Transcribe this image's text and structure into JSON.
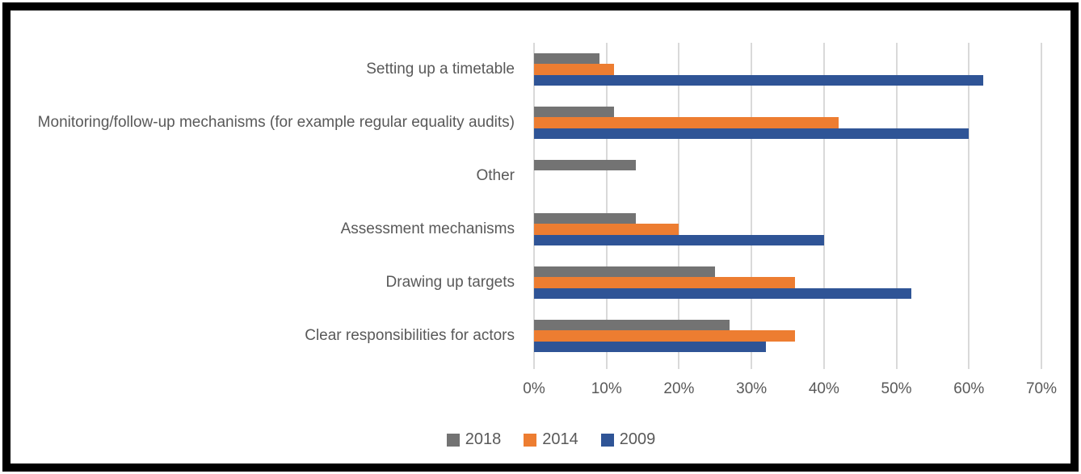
{
  "chart_data": {
    "type": "bar",
    "orientation": "horizontal",
    "title": "",
    "xlabel": "",
    "ylabel": "",
    "xlim": [
      0,
      70
    ],
    "x_ticks": [
      "0%",
      "10%",
      "20%",
      "30%",
      "40%",
      "50%",
      "60%",
      "70%"
    ],
    "grid": true,
    "legend_position": "bottom",
    "categories": [
      "Setting up a timetable",
      "Monitoring/follow-up mechanisms (for example regular equality audits)",
      "Other",
      "Assessment mechanisms",
      "Drawing up targets",
      "Clear responsibilities for actors"
    ],
    "series": [
      {
        "name": "2018",
        "color": "#737373",
        "values": [
          9,
          11,
          14,
          14,
          25,
          27
        ]
      },
      {
        "name": "2014",
        "color": "#ED7D31",
        "values": [
          11,
          42,
          0,
          20,
          36,
          36
        ]
      },
      {
        "name": "2009",
        "color": "#2F5496",
        "values": [
          62,
          60,
          0,
          40,
          52,
          32
        ]
      }
    ]
  },
  "styles": {
    "gridline_color": "#D9D9D9",
    "tick_color": "#D9D9D9",
    "text_color": "#595959",
    "frame_border_color": "#000000",
    "background": "#FFFFFF"
  },
  "legend": {
    "items": [
      "2018",
      "2014",
      "2009"
    ]
  }
}
